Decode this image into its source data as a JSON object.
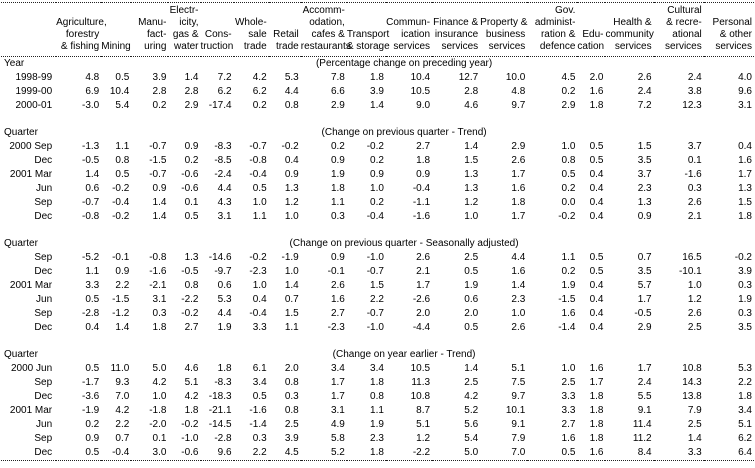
{
  "table": {
    "columns": [
      {
        "name": "agriculture-forestry-fishing",
        "lines": [
          "Agriculture,",
          "forestry",
          "& fishing"
        ]
      },
      {
        "name": "mining",
        "lines": [
          "Mining"
        ]
      },
      {
        "name": "manufacturing",
        "lines": [
          "Manu-",
          "fact-",
          "uring"
        ]
      },
      {
        "name": "electricity-gas-water",
        "lines": [
          "Electr-",
          "icity,",
          "gas &",
          "water"
        ]
      },
      {
        "name": "construction",
        "lines": [
          "Cons-",
          "truction"
        ]
      },
      {
        "name": "wholesale-trade",
        "lines": [
          "Whole-",
          "sale",
          "trade"
        ]
      },
      {
        "name": "retail-trade",
        "lines": [
          "Retail",
          "trade"
        ]
      },
      {
        "name": "accommodation-cafes-restaurants",
        "lines": [
          "Accomm-",
          "odation,",
          "cafes &",
          "restaurants"
        ]
      },
      {
        "name": "transport-storage",
        "lines": [
          "Transport",
          "& storage"
        ]
      },
      {
        "name": "communication-services",
        "lines": [
          "Commun-",
          "ication",
          "services"
        ]
      },
      {
        "name": "finance-insurance-services",
        "lines": [
          "Finance &",
          "insurance",
          "services"
        ]
      },
      {
        "name": "property-business-services",
        "lines": [
          "Property &",
          "business",
          "services"
        ]
      },
      {
        "name": "gov-administration-defence",
        "lines": [
          "Gov.",
          "administ-",
          "ration &",
          "defence"
        ]
      },
      {
        "name": "education",
        "lines": [
          "Edu-",
          "cation"
        ]
      },
      {
        "name": "health-community-services",
        "lines": [
          "Health &",
          "community",
          "services"
        ]
      },
      {
        "name": "cultural-recreational-services",
        "lines": [
          "Cultural",
          "& recre-",
          "ational",
          "services"
        ]
      },
      {
        "name": "personal-other-services",
        "lines": [
          "Personal",
          "& other",
          "services"
        ]
      }
    ],
    "sections": [
      {
        "label": "Year",
        "note": "(Percentage change on preceding year)",
        "rows": [
          {
            "label": "1998-99",
            "values": [
              "4.8",
              "0.5",
              "3.9",
              "1.4",
              "7.2",
              "4.2",
              "5.3",
              "7.8",
              "1.8",
              "10.4",
              "12.7",
              "10.0",
              "4.5",
              "2.0",
              "2.6",
              "2.4",
              "4.0"
            ]
          },
          {
            "label": "1999-00",
            "values": [
              "6.9",
              "10.4",
              "2.8",
              "2.8",
              "6.2",
              "6.2",
              "4.4",
              "6.6",
              "3.9",
              "10.5",
              "2.8",
              "4.8",
              "0.2",
              "1.6",
              "2.4",
              "3.8",
              "9.6"
            ]
          },
          {
            "label": "2000-01",
            "values": [
              "-3.0",
              "5.4",
              "0.2",
              "2.9",
              "-17.4",
              "0.2",
              "0.8",
              "2.9",
              "1.4",
              "9.0",
              "4.6",
              "9.7",
              "2.9",
              "1.8",
              "7.2",
              "12.3",
              "3.1"
            ]
          }
        ]
      },
      {
        "label": "Quarter",
        "note": "(Change on previous quarter - Trend)",
        "rows": [
          {
            "label": "2000 Sep",
            "values": [
              "-1.3",
              "1.1",
              "-0.7",
              "0.9",
              "-8.3",
              "-0.7",
              "-0.2",
              "0.2",
              "-0.2",
              "2.7",
              "1.4",
              "2.9",
              "1.0",
              "0.5",
              "1.5",
              "3.7",
              "0.4"
            ]
          },
          {
            "label": "Dec",
            "values": [
              "-0.5",
              "0.8",
              "-1.5",
              "0.2",
              "-8.5",
              "-0.8",
              "0.4",
              "0.9",
              "0.2",
              "1.8",
              "1.5",
              "2.6",
              "0.8",
              "0.5",
              "3.5",
              "0.1",
              "1.6"
            ]
          },
          {
            "label": "2001 Mar",
            "values": [
              "1.4",
              "0.5",
              "-0.7",
              "-0.6",
              "-2.4",
              "-0.4",
              "0.9",
              "1.9",
              "0.9",
              "0.9",
              "1.3",
              "1.7",
              "0.5",
              "0.4",
              "3.7",
              "-1.6",
              "1.7"
            ]
          },
          {
            "label": "Jun",
            "values": [
              "0.6",
              "-0.2",
              "0.9",
              "-0.6",
              "4.4",
              "0.5",
              "1.3",
              "1.8",
              "1.0",
              "-0.4",
              "1.3",
              "1.6",
              "0.2",
              "0.4",
              "2.3",
              "0.3",
              "1.3"
            ]
          },
          {
            "label": "Sep",
            "values": [
              "-0.7",
              "-0.4",
              "1.4",
              "0.1",
              "4.3",
              "1.0",
              "1.2",
              "1.1",
              "0.2",
              "-1.1",
              "1.2",
              "1.8",
              "0.0",
              "0.4",
              "1.3",
              "2.6",
              "1.5"
            ]
          },
          {
            "label": "Dec",
            "values": [
              "-0.8",
              "-0.2",
              "1.4",
              "0.5",
              "3.1",
              "1.1",
              "1.0",
              "0.3",
              "-0.4",
              "-1.6",
              "1.0",
              "1.7",
              "-0.2",
              "0.4",
              "0.9",
              "2.1",
              "1.8"
            ]
          }
        ]
      },
      {
        "label": "Quarter",
        "note": "(Change on previous quarter - Seasonally adjusted)",
        "rows": [
          {
            "label": "Sep",
            "values": [
              "-5.2",
              "-0.1",
              "-0.8",
              "1.3",
              "-14.6",
              "-0.2",
              "-1.9",
              "0.9",
              "-1.0",
              "2.6",
              "2.5",
              "4.4",
              "1.1",
              "0.5",
              "0.7",
              "16.5",
              "-0.2"
            ]
          },
          {
            "label": "Dec",
            "values": [
              "1.1",
              "0.9",
              "-1.6",
              "-0.5",
              "-9.7",
              "-2.3",
              "1.0",
              "-0.1",
              "-0.7",
              "2.1",
              "0.5",
              "1.6",
              "0.2",
              "0.5",
              "3.5",
              "-10.1",
              "3.9"
            ]
          },
          {
            "label": "2001 Mar",
            "values": [
              "3.3",
              "2.2",
              "-2.1",
              "0.8",
              "0.6",
              "1.0",
              "1.4",
              "2.6",
              "1.5",
              "1.7",
              "1.9",
              "1.4",
              "1.9",
              "0.4",
              "5.7",
              "1.0",
              "0.3"
            ]
          },
          {
            "label": "Jun",
            "values": [
              "0.5",
              "-1.5",
              "3.1",
              "-2.2",
              "5.3",
              "0.4",
              "0.7",
              "1.6",
              "2.2",
              "-2.6",
              "0.6",
              "2.3",
              "-1.5",
              "0.4",
              "1.7",
              "1.2",
              "1.9"
            ]
          },
          {
            "label": "Sep",
            "values": [
              "-2.8",
              "-1.2",
              "0.3",
              "-0.2",
              "4.4",
              "-0.4",
              "1.5",
              "2.7",
              "-0.7",
              "2.0",
              "2.0",
              "1.0",
              "1.6",
              "0.4",
              "-0.5",
              "2.6",
              "0.3"
            ]
          },
          {
            "label": "Dec",
            "values": [
              "0.4",
              "1.4",
              "1.8",
              "2.7",
              "1.9",
              "3.3",
              "1.1",
              "-2.3",
              "-1.0",
              "-4.4",
              "0.5",
              "2.6",
              "-1.4",
              "0.4",
              "2.9",
              "2.5",
              "3.5"
            ]
          }
        ]
      },
      {
        "label": "Quarter",
        "note": "(Change on year earlier - Trend)",
        "rows": [
          {
            "label": "2000 Jun",
            "values": [
              "0.5",
              "11.0",
              "5.0",
              "4.6",
              "1.8",
              "6.1",
              "2.0",
              "3.4",
              "3.4",
              "10.5",
              "1.4",
              "5.1",
              "1.0",
              "1.6",
              "1.7",
              "10.8",
              "5.3"
            ]
          },
          {
            "label": "Sep",
            "values": [
              "-1.7",
              "9.3",
              "4.2",
              "5.1",
              "-8.3",
              "3.4",
              "0.8",
              "1.7",
              "1.8",
              "11.3",
              "2.5",
              "7.5",
              "2.5",
              "1.7",
              "2.4",
              "14.3",
              "2.2"
            ]
          },
          {
            "label": "Dec",
            "values": [
              "-3.6",
              "7.0",
              "1.0",
              "4.2",
              "-18.3",
              "0.5",
              "0.3",
              "1.7",
              "0.8",
              "10.8",
              "4.2",
              "9.7",
              "3.3",
              "1.8",
              "5.5",
              "13.8",
              "1.8"
            ]
          },
          {
            "label": "2001 Mar",
            "values": [
              "-1.9",
              "4.2",
              "-1.8",
              "1.8",
              "-21.1",
              "-1.6",
              "0.8",
              "3.1",
              "1.1",
              "8.7",
              "5.2",
              "10.1",
              "3.3",
              "1.8",
              "9.1",
              "7.9",
              "3.4"
            ]
          },
          {
            "label": "Jun",
            "values": [
              "0.2",
              "2.2",
              "-2.0",
              "-0.2",
              "-14.5",
              "-1.4",
              "2.5",
              "4.9",
              "1.9",
              "5.1",
              "5.6",
              "9.1",
              "2.7",
              "1.8",
              "11.4",
              "2.5",
              "5.1"
            ]
          },
          {
            "label": "Sep",
            "values": [
              "0.9",
              "0.7",
              "0.1",
              "-1.0",
              "-2.8",
              "0.3",
              "3.9",
              "5.8",
              "2.3",
              "1.2",
              "5.4",
              "7.9",
              "1.6",
              "1.8",
              "11.2",
              "1.4",
              "6.2"
            ]
          },
          {
            "label": "Dec",
            "values": [
              "0.5",
              "-0.4",
              "3.0",
              "-0.6",
              "9.6",
              "2.2",
              "4.5",
              "5.2",
              "1.8",
              "-2.2",
              "5.0",
              "7.0",
              "0.5",
              "1.6",
              "8.4",
              "3.3",
              "6.4"
            ]
          }
        ]
      }
    ]
  }
}
